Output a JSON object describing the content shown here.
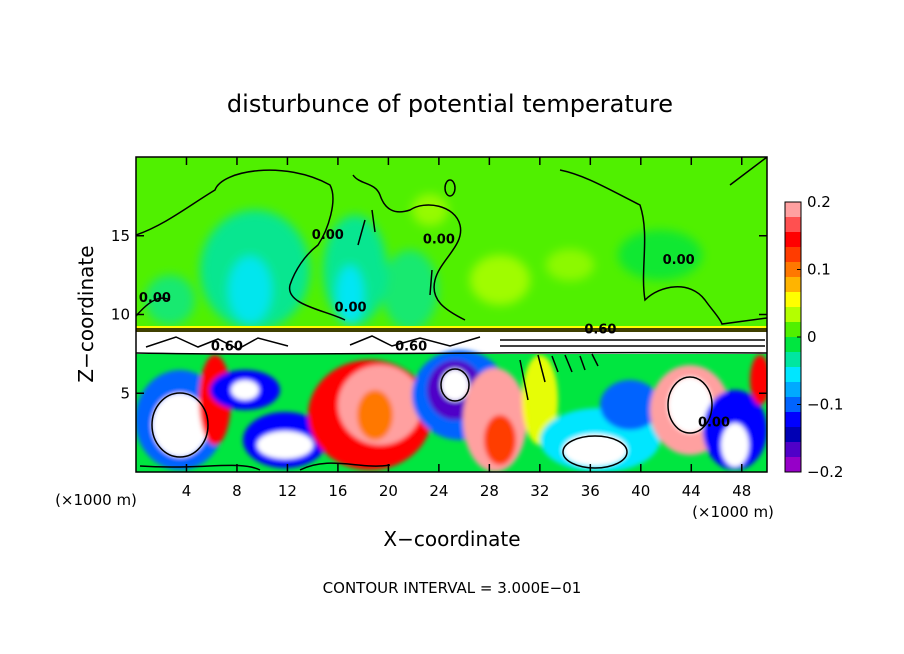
{
  "chart_data": {
    "type": "heatmap",
    "title": "disturbunce of potential temperature",
    "xlabel": "X−coordinate",
    "ylabel": "Z−coordinate",
    "x_unit_left": "(×1000 m)",
    "x_unit_right": "(×1000 m)",
    "footer": "CONTOUR INTERVAL = 3.000E−01",
    "xlim": [
      0,
      50
    ],
    "ylim": [
      0,
      20
    ],
    "x_ticks": [
      4,
      8,
      12,
      16,
      20,
      24,
      28,
      32,
      36,
      40,
      44,
      48
    ],
    "x_tick_labels": [
      "4",
      "8",
      "12",
      "16",
      "20",
      "24",
      "28",
      "32",
      "36",
      "40",
      "44",
      "48"
    ],
    "y_ticks": [
      5,
      10,
      15
    ],
    "y_tick_labels": [
      "5",
      "10",
      "15"
    ],
    "colorbar": {
      "range": [
        -0.2,
        0.2
      ],
      "ticks": [
        0.2,
        0.1,
        0,
        -0.1,
        -0.2
      ],
      "tick_labels": [
        "0.2",
        "0.1",
        "0",
        "−0.1",
        "−0.2"
      ],
      "colors": [
        "#ffa0a0",
        "#ff5050",
        "#ff0000",
        "#ff3c00",
        "#ff7800",
        "#ffb400",
        "#ffff00",
        "#b4ff00",
        "#50f000",
        "#00e640",
        "#00e6a0",
        "#00e6ff",
        "#00aaff",
        "#0064ff",
        "#0000ff",
        "#0000b4",
        "#5000c8",
        "#9600c8"
      ]
    },
    "contour_labels": [
      {
        "text": "0.00",
        "x": 1.5,
        "y": 10.8
      },
      {
        "text": "0.00",
        "x": 15.2,
        "y": 14.8
      },
      {
        "text": "0.00",
        "x": 17.0,
        "y": 10.2
      },
      {
        "text": "0.00",
        "x": 24.0,
        "y": 14.5
      },
      {
        "text": "0.00",
        "x": 43.0,
        "y": 13.2
      },
      {
        "text": "0.60",
        "x": 7.2,
        "y": 7.7
      },
      {
        "text": "0.60",
        "x": 21.8,
        "y": 7.7
      },
      {
        "text": "0.60",
        "x": 36.8,
        "y": 8.8
      },
      {
        "text": "0.00",
        "x": 45.8,
        "y": 2.9
      }
    ]
  }
}
